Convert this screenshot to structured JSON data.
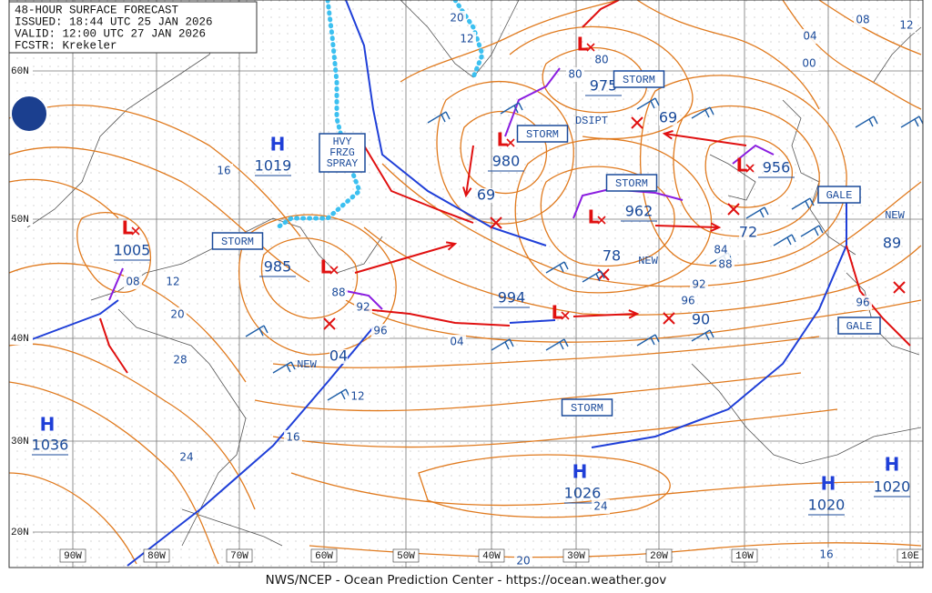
{
  "header": {
    "lines": [
      "48-HOUR SURFACE FORECAST",
      "ISSUED: 18:44 UTC 25 JAN 2026",
      "VALID: 12:00 UTC 27 JAN 2026",
      "FCSTR: Krekeler"
    ]
  },
  "centers": [
    {
      "symbol": "H",
      "pressure": "1019"
    },
    {
      "symbol": "L",
      "pressure": "1005"
    },
    {
      "symbol": "L",
      "pressure": "985"
    },
    {
      "symbol": "L",
      "pressure": "980"
    },
    {
      "symbol": "L",
      "pressure": "975"
    },
    {
      "symbol": "L",
      "pressure": "962"
    },
    {
      "symbol": "L",
      "pressure": "956"
    },
    {
      "symbol": "L",
      "pressure": "994"
    },
    {
      "symbol": "H",
      "pressure": "1036"
    },
    {
      "symbol": "H",
      "pressure": "1026"
    },
    {
      "symbol": "H",
      "pressure": "1020"
    },
    {
      "symbol": "H",
      "pressure": "1020"
    }
  ],
  "isobar_labels": [
    "20",
    "12",
    "08",
    "12",
    "04",
    "00",
    "80",
    "80",
    "69",
    "69",
    "78",
    "84",
    "88",
    "72",
    "89",
    "92",
    "96",
    "90",
    "96",
    "16",
    "12",
    "08",
    "20",
    "28",
    "88",
    "92",
    "96",
    "04",
    "04",
    "12",
    "16",
    "24",
    "24",
    "20",
    "16"
  ],
  "warnings": [
    "STORM",
    "STORM",
    "STORM",
    "STORM",
    "STORM",
    "GALE",
    "GALE"
  ],
  "spray_warning": [
    "HVY",
    "FRZG",
    "SPRAY"
  ],
  "notes": [
    "NEW",
    "NEW",
    "NEW",
    "DSIPT"
  ],
  "latitude_labels": [
    "60N",
    "50N",
    "40N",
    "30N",
    "20N"
  ],
  "longitude_labels": [
    "90W",
    "80W",
    "70W",
    "60W",
    "50W",
    "40W",
    "30W",
    "20W",
    "10W",
    "10E"
  ],
  "footer": "NWS/NCEP - Ocean Prediction Center - https://ocean.weather.gov"
}
